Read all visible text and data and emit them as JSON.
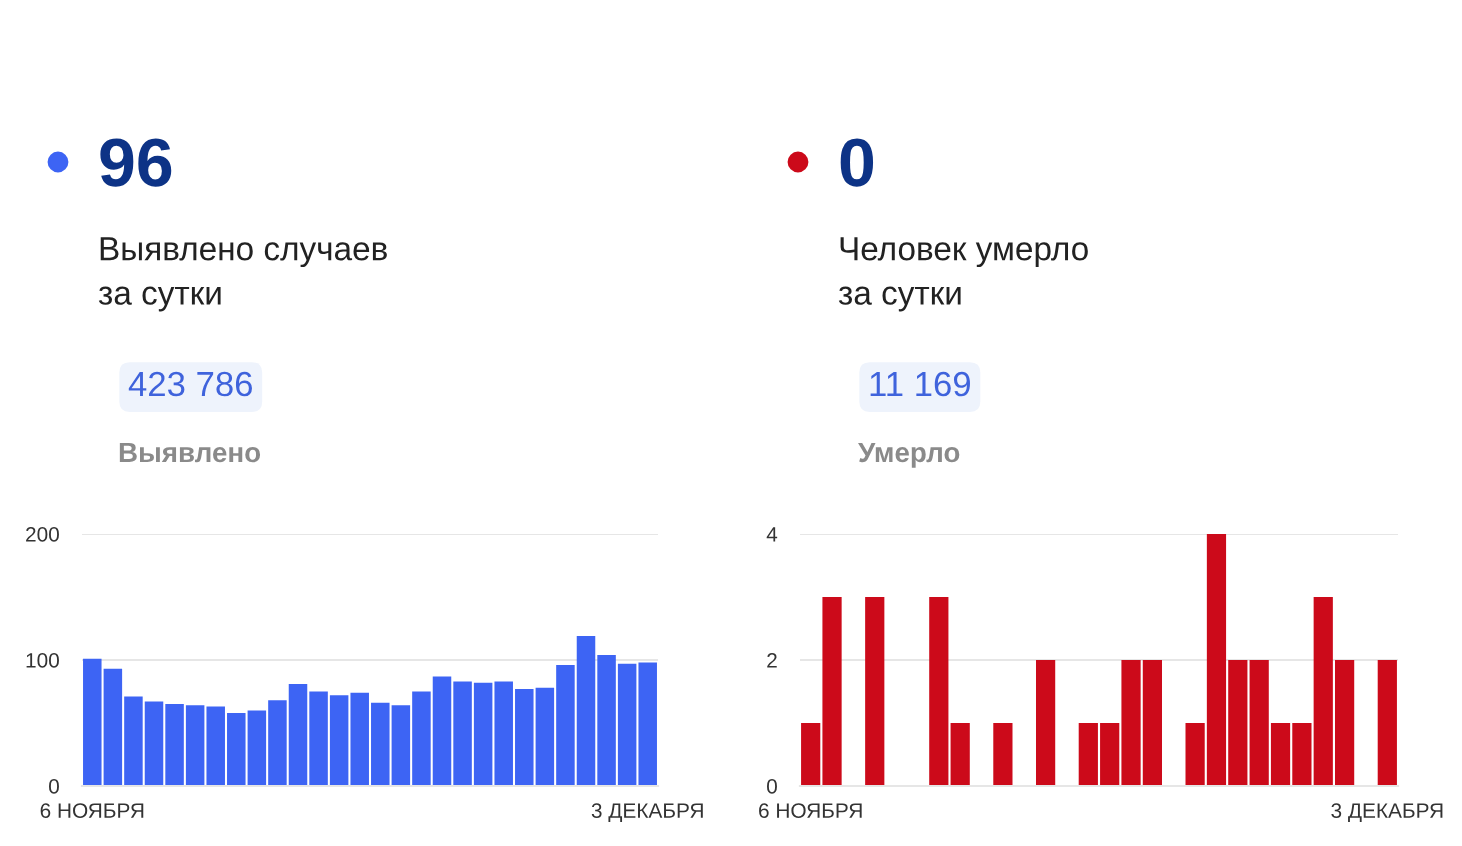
{
  "chart_data": [
    {
      "type": "other",
      "title": "96",
      "subtitle": "Выявлено случаев\nза сутки",
      "annotations": [
        "423 786",
        "Выявлено"
      ],
      "color": "#3d64f4"
    },
    {
      "type": "bar",
      "categories": [
        "6 НОЯБРЯ",
        null,
        null,
        null,
        null,
        null,
        null,
        null,
        null,
        null,
        null,
        null,
        null,
        null,
        null,
        null,
        null,
        null,
        null,
        null,
        null,
        null,
        null,
        null,
        null,
        null,
        null,
        "3 ДЕКАБРЯ"
      ],
      "values": [
        101,
        93,
        71,
        67,
        65,
        64,
        63,
        58,
        60,
        68,
        81,
        75,
        72,
        74,
        66,
        64,
        75,
        87,
        83,
        82,
        83,
        77,
        78,
        96,
        119,
        104,
        97,
        98
      ],
      "color": "#3d64f4",
      "ylim": [
        0,
        200
      ],
      "yticks": [
        0,
        100,
        200
      ],
      "grid": "y"
    },
    {
      "type": "other",
      "title": "0",
      "subtitle": "Человек умерло\nза сутки",
      "annotations": [
        "11 169",
        "Умерло"
      ],
      "color": "#cc0a1a"
    },
    {
      "type": "bar",
      "categories": [
        "6 НОЯБРЯ",
        null,
        null,
        null,
        null,
        null,
        null,
        null,
        null,
        null,
        null,
        null,
        null,
        null,
        null,
        null,
        null,
        null,
        null,
        null,
        null,
        null,
        null,
        null,
        null,
        null,
        null,
        "3 ДЕКАБРЯ"
      ],
      "values": [
        1,
        3,
        0,
        3,
        0,
        0,
        3,
        1,
        0,
        1,
        0,
        2,
        0,
        1,
        1,
        2,
        2,
        0,
        1,
        4,
        2,
        2,
        1,
        1,
        3,
        2,
        0,
        2
      ],
      "color": "#cc0a1a",
      "ylim": [
        0,
        4
      ],
      "yticks": [
        0,
        2,
        4
      ],
      "grid": "y"
    }
  ]
}
